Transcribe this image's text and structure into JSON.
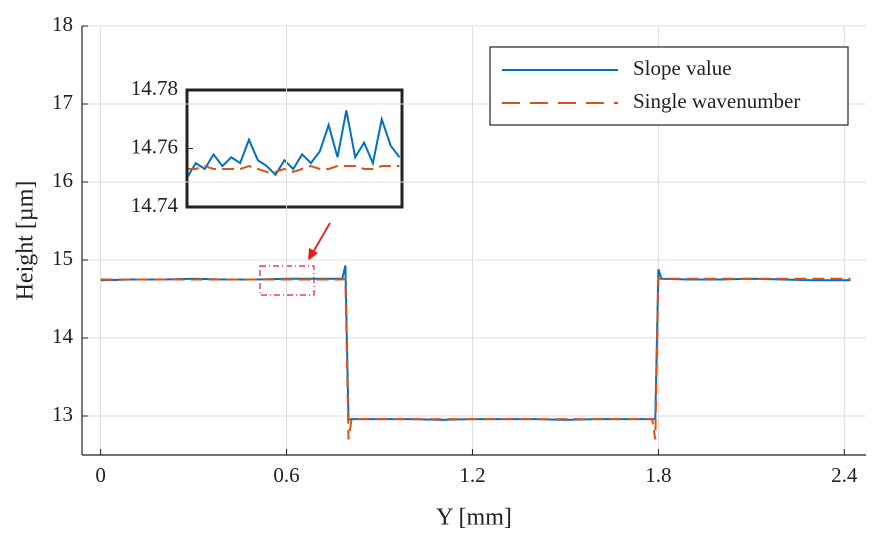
{
  "chart_data": [
    {
      "type": "line",
      "xlabel": "Y [mm]",
      "ylabel": "Height [µm]",
      "x": [
        0,
        0.1,
        0.2,
        0.3,
        0.4,
        0.5,
        0.6,
        0.7,
        0.78,
        0.79,
        0.8,
        0.81,
        0.9,
        1.0,
        1.1,
        1.2,
        1.3,
        1.4,
        1.5,
        1.6,
        1.7,
        1.78,
        1.79,
        1.8,
        1.81,
        1.9,
        2.0,
        2.1,
        2.2,
        2.3,
        2.42
      ],
      "series": [
        {
          "name": "Slope value",
          "color": "#0072bd",
          "linestyle": "solid",
          "values": [
            14.74,
            14.75,
            14.75,
            14.76,
            14.75,
            14.75,
            14.76,
            14.76,
            14.76,
            14.93,
            12.95,
            12.96,
            12.96,
            12.96,
            12.95,
            12.96,
            12.96,
            12.96,
            12.95,
            12.96,
            12.96,
            12.96,
            12.96,
            14.88,
            14.76,
            14.75,
            14.75,
            14.76,
            14.75,
            14.74,
            14.74
          ]
        },
        {
          "name": "Single wavenumber",
          "color": "#d95319",
          "linestyle": "dashed",
          "values": [
            14.75,
            14.75,
            14.75,
            14.75,
            14.75,
            14.75,
            14.75,
            14.75,
            14.75,
            14.76,
            12.7,
            12.96,
            12.96,
            12.96,
            12.96,
            12.96,
            12.96,
            12.96,
            12.96,
            12.96,
            12.96,
            12.96,
            12.7,
            14.76,
            14.76,
            14.76,
            14.76,
            14.76,
            14.76,
            14.76,
            14.76
          ]
        }
      ],
      "xlim": [
        -0.06,
        2.47
      ],
      "ylim": [
        12.5,
        18
      ],
      "xticks": [
        0,
        0.6,
        1.2,
        1.8,
        2.4
      ],
      "yticks": [
        13,
        14,
        15,
        16,
        17,
        18
      ],
      "grid": true,
      "legend": "upper right"
    },
    {
      "type": "line",
      "x": [
        0.52,
        0.527,
        0.534,
        0.541,
        0.548,
        0.555,
        0.562,
        0.569,
        0.576,
        0.583,
        0.59,
        0.597,
        0.604,
        0.611,
        0.618,
        0.625,
        0.632,
        0.639,
        0.646,
        0.653,
        0.66,
        0.667,
        0.674,
        0.681,
        0.688
      ],
      "series": [
        {
          "color": "#0072bd",
          "linestyle": "solid",
          "values": [
            14.75,
            14.755,
            14.753,
            14.758,
            14.754,
            14.757,
            14.755,
            14.763,
            14.756,
            14.754,
            14.751,
            14.756,
            14.753,
            14.758,
            14.755,
            14.759,
            14.768,
            14.757,
            14.773,
            14.757,
            14.762,
            14.755,
            14.77,
            14.761,
            14.757
          ]
        },
        {
          "color": "#d95319",
          "linestyle": "dashed",
          "values": [
            14.753,
            14.753,
            14.754,
            14.753,
            14.753,
            14.753,
            14.753,
            14.754,
            14.753,
            14.752,
            14.752,
            14.753,
            14.752,
            14.753,
            14.754,
            14.753,
            14.753,
            14.754,
            14.754,
            14.754,
            14.753,
            14.753,
            14.754,
            14.754,
            14.754
          ]
        }
      ],
      "xlim": [
        0.52,
        0.69
      ],
      "ylim": [
        14.74,
        14.78
      ],
      "yticks": [
        14.74,
        14.76,
        14.78
      ],
      "grid": false
    }
  ]
}
